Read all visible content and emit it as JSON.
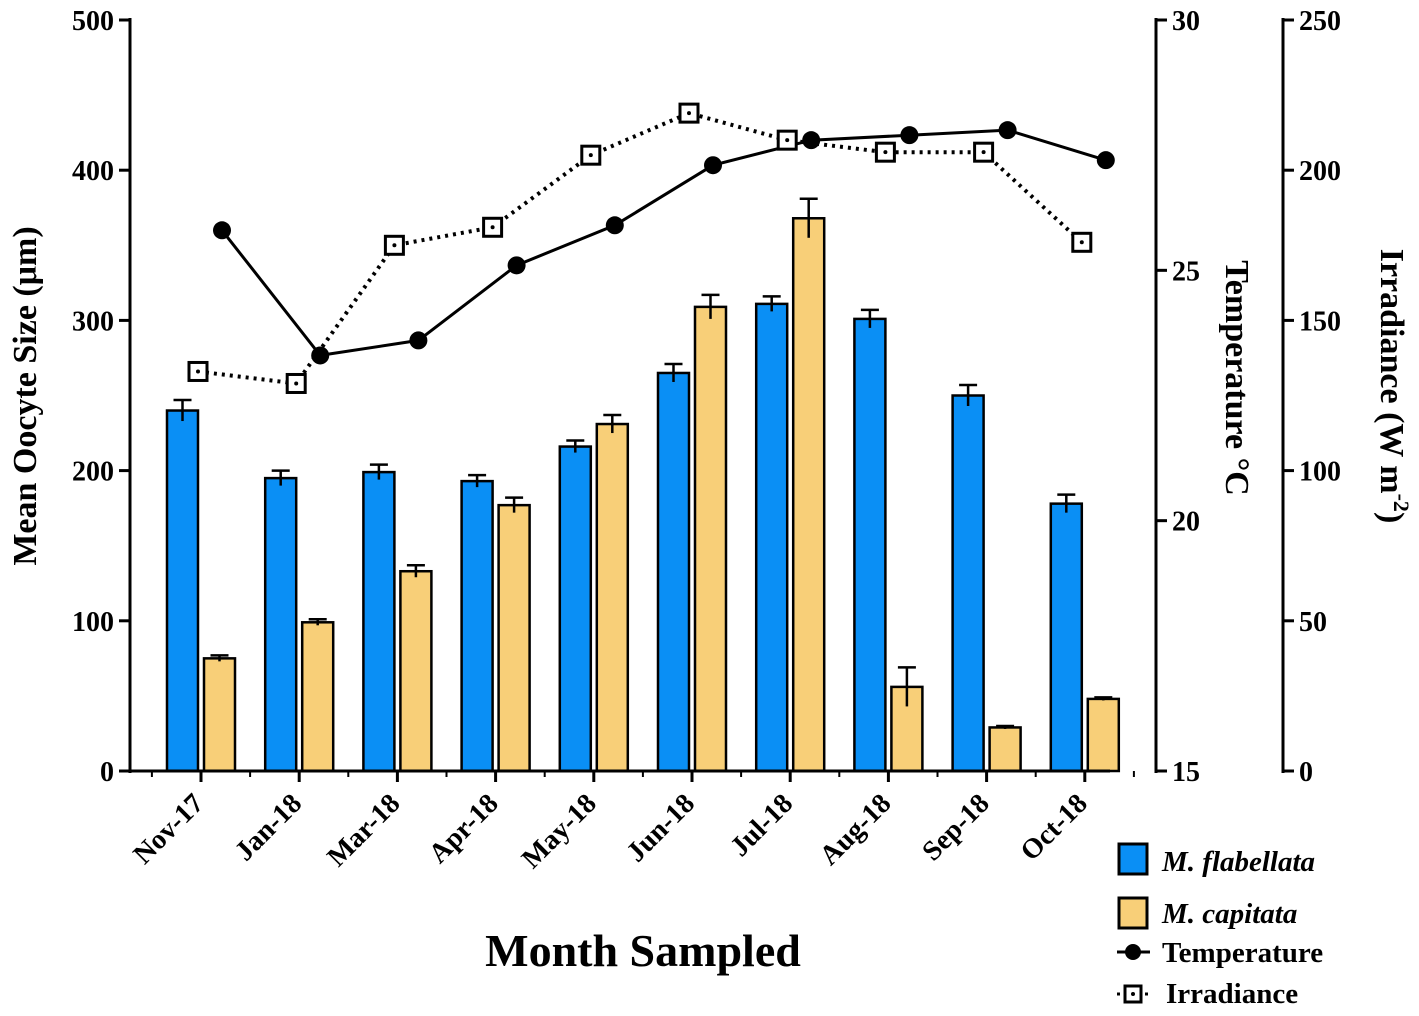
{
  "chart_data": {
    "type": "bar",
    "categories": [
      "Nov-17",
      "Jan-18",
      "Mar-18",
      "Apr-18",
      "May-18",
      "Jun-18",
      "Jul-18",
      "Aug-18",
      "Sep-18",
      "Oct-18"
    ],
    "xlabel": "Month Sampled",
    "ylabel": "Mean Oocyte Size (μm)",
    "ylim": [
      0,
      500
    ],
    "yticks": [
      "0",
      "100",
      "200",
      "300",
      "400",
      "500"
    ],
    "y2label": "Temperature °C",
    "y2lim": [
      15,
      30
    ],
    "y2ticks": [
      "15",
      "20",
      "25",
      "30"
    ],
    "y3label_main": "Irradiance (W m",
    "y3label_sup": "-2",
    "y3label_end": ")",
    "y3lim": [
      0,
      250
    ],
    "y3ticks": [
      "0",
      "50",
      "100",
      "150",
      "200",
      "250"
    ],
    "series": [
      {
        "name": "M. flabellata",
        "kind": "bar",
        "color": "#0A8FF5",
        "values": [
          240,
          195,
          199,
          193,
          216,
          265,
          311,
          301,
          250,
          178
        ],
        "errors": [
          7,
          5,
          5,
          4,
          4,
          6,
          5,
          6,
          7,
          6
        ]
      },
      {
        "name": "M. capitata",
        "kind": "bar",
        "color": "#F8CF78",
        "values": [
          75,
          99,
          133,
          177,
          231,
          309,
          368,
          56,
          29,
          48
        ],
        "errors": [
          2,
          2,
          4,
          5,
          6,
          8,
          13,
          13,
          1,
          1
        ]
      },
      {
        "name": "Temperature",
        "kind": "line",
        "axis": "temperature",
        "values": [
          25.8,
          23.3,
          23.6,
          25.1,
          25.9,
          27.1,
          27.6,
          27.7,
          27.8,
          27.2
        ]
      },
      {
        "name": "Irradiance",
        "kind": "line-dotted",
        "axis": "irradiance",
        "values": [
          133,
          129,
          175,
          181,
          205,
          219,
          210,
          206,
          206,
          176
        ]
      }
    ],
    "legend": [
      {
        "label": "M. flabellata",
        "symbol": "bar-blue",
        "italic": true
      },
      {
        "label": "M. capitata",
        "symbol": "bar-yellow",
        "italic": true
      },
      {
        "label": "Temperature",
        "symbol": "filled-circle-line",
        "italic": false
      },
      {
        "label": "Irradiance",
        "symbol": "open-square-dotted",
        "italic": false
      }
    ],
    "legend_position": "bottom-right"
  }
}
